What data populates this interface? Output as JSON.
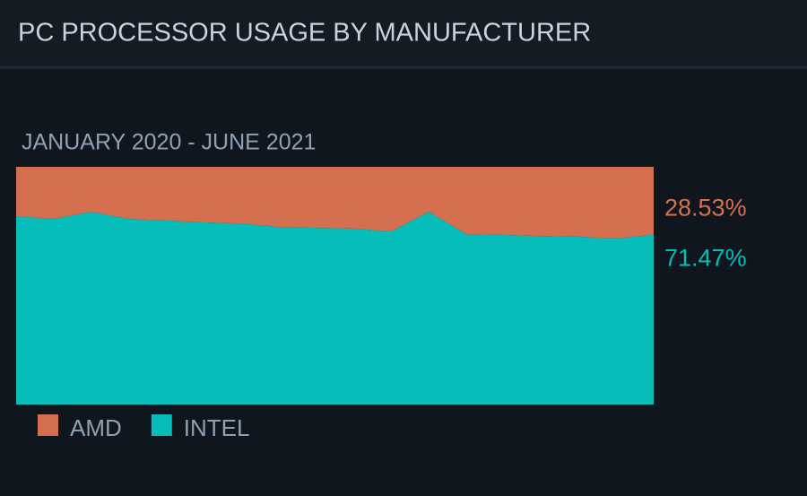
{
  "chart_data": {
    "type": "stacked-area",
    "title": "PC PROCESSOR USAGE BY MANUFACTURER",
    "subtitle": "JANUARY 2020 - JUNE 2021",
    "ylim": [
      0,
      100
    ],
    "stack_bottom": "INTEL",
    "series": [
      {
        "name": "AMD",
        "color": "#d4704f",
        "values": [
          20.8,
          21.9,
          18.9,
          21.9,
          22.6,
          23.4,
          23.8,
          25.3,
          25.7,
          26.0,
          27.2,
          18.9,
          28.3,
          28.7,
          29.1,
          29.4,
          30.2,
          28.53
        ],
        "value_labels": [
          null,
          null,
          null,
          null,
          null,
          null,
          null,
          null,
          null,
          null,
          null,
          null,
          null,
          null,
          null,
          null,
          null,
          "28.53%"
        ]
      },
      {
        "name": "INTEL",
        "color": "#06bdb9",
        "values": [
          79.2,
          78.1,
          81.1,
          78.1,
          77.4,
          76.6,
          76.2,
          74.7,
          74.3,
          74.0,
          72.8,
          81.1,
          71.7,
          71.3,
          70.9,
          70.6,
          69.8,
          71.47
        ],
        "value_labels": [
          null,
          null,
          null,
          null,
          null,
          null,
          null,
          null,
          null,
          null,
          null,
          null,
          null,
          null,
          null,
          null,
          null,
          "71.47%"
        ]
      }
    ]
  }
}
